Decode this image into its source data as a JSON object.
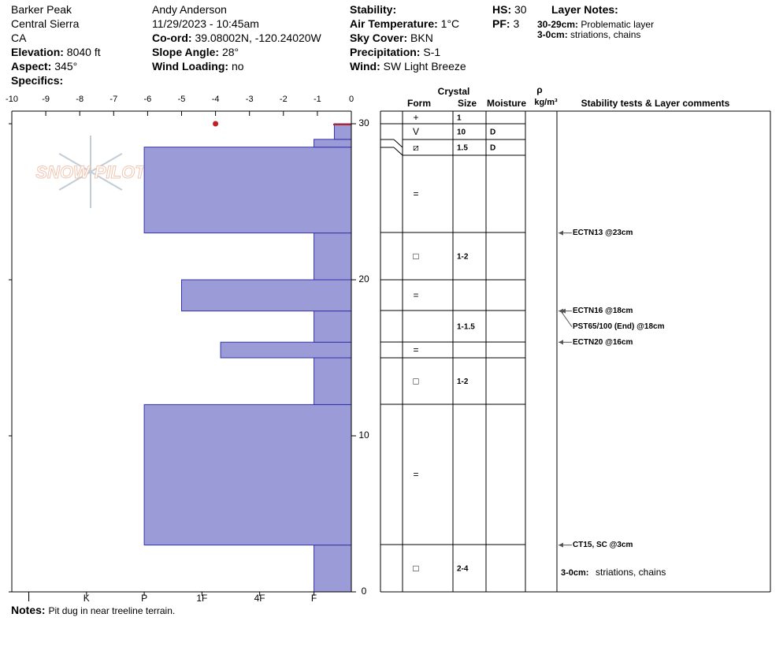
{
  "header": {
    "location": [
      "Barker Peak",
      "Central Sierra",
      "CA"
    ],
    "observer": "Andy Anderson",
    "datetime": "11/29/2023 - 10:45am",
    "fields": [
      {
        "label": "Elevation:",
        "value": "8040 ft"
      },
      {
        "label": "Aspect:",
        "value": "345°"
      },
      {
        "label": "Specifics:"
      },
      {
        "label": "Co-ord:",
        "value": "39.08002N, -120.24020W"
      },
      {
        "label": "Slope Angle:",
        "value": "28°"
      },
      {
        "label": "Wind Loading:",
        "value": "no"
      },
      {
        "label": "Stability:"
      },
      {
        "label": "Air Temperature:",
        "value": "1°C"
      },
      {
        "label": "Sky Cover:",
        "value": "BKN"
      },
      {
        "label": "Precipitation:",
        "value": "S-1"
      },
      {
        "label": "Wind:",
        "value": "SW Light Breeze"
      },
      {
        "label": "HS:",
        "value": "30"
      },
      {
        "label": "PF:",
        "value": "3"
      }
    ],
    "layer_notes_title": "Layer Notes:",
    "layer_notes": [
      {
        "label": "30-29cm:",
        "text": "Problematic layer"
      },
      {
        "label": "3-0cm:",
        "text": "striations, chains"
      }
    ]
  },
  "chart_data": {
    "type": "snowpit",
    "logo": "SNOW PILOT",
    "color": "#9b9bd8",
    "xlim": [
      -10,
      0
    ],
    "xticks": [
      -10,
      -9,
      -8,
      -7,
      -6,
      -5,
      -4,
      -3,
      -2,
      -1,
      0
    ],
    "hardness_ticks": [
      {
        "value": -9.5,
        "label": "I"
      },
      {
        "value": -7.8,
        "label": "K"
      },
      {
        "value": -6.1,
        "label": "P"
      },
      {
        "value": -4.4,
        "label": "1F"
      },
      {
        "value": -2.7,
        "label": "4F"
      },
      {
        "value": -1.1,
        "label": "F"
      }
    ],
    "ylim": [
      0,
      30
    ],
    "yticks": [
      0,
      10,
      20,
      30
    ],
    "layers": [
      {
        "bottom": 0,
        "top": 3,
        "hardness": -1.1
      },
      {
        "bottom": 3,
        "top": 12,
        "hardness": -6.1
      },
      {
        "bottom": 12,
        "top": 15,
        "hardness": -1.1
      },
      {
        "bottom": 15,
        "top": 16,
        "hardness": -3.85
      },
      {
        "bottom": 16,
        "top": 18,
        "hardness": -1.1
      },
      {
        "bottom": 18,
        "top": 20,
        "hardness": -5
      },
      {
        "bottom": 20,
        "top": 23,
        "hardness": -1.1
      },
      {
        "bottom": 23,
        "top": 28.5,
        "hardness": -6.1
      },
      {
        "bottom": 28.5,
        "top": 29,
        "hardness": -1.1
      },
      {
        "bottom": 29,
        "top": 30,
        "hardness": -0.5
      }
    ],
    "marker": {
      "hardness": -4,
      "depth": 30
    },
    "table_headers": {
      "crystal": "Crystal",
      "form": "Form",
      "size": "Size",
      "moisture": "Moisture",
      "density": "ρ",
      "density_unit": "kg/m³",
      "comments": "Stability tests & Layer comments"
    },
    "rows": [
      {
        "form": "+",
        "size": "1"
      },
      {
        "form": "V",
        "size": "10",
        "moisture": "D"
      },
      {
        "form": "⧄",
        "size": "1.5",
        "moisture": "D"
      },
      {
        "form": "="
      },
      {
        "form": "□",
        "size": "1-2"
      },
      {
        "form": "="
      },
      {
        "size": "1-1.5"
      },
      {
        "form": "="
      },
      {
        "form": "□",
        "size": "1-2"
      },
      {
        "form": "="
      },
      {
        "form": "□",
        "size": "2-4"
      }
    ],
    "tests": [
      {
        "text": "ECTN13 @23cm",
        "depth": 23
      },
      {
        "text": "ECTN16 @18cm",
        "depth": 18
      },
      {
        "text": "PST65/100 (End) @18cm",
        "depth": 18
      },
      {
        "text": "ECTN20 @16cm",
        "depth": 16
      },
      {
        "text": "CT15, SC @3cm",
        "depth": 3
      }
    ],
    "comment": {
      "label": "3-0cm:",
      "text": "striations, chains"
    },
    "notes_label": "Notes:",
    "notes": "Pit dug in near treeline terrain."
  }
}
